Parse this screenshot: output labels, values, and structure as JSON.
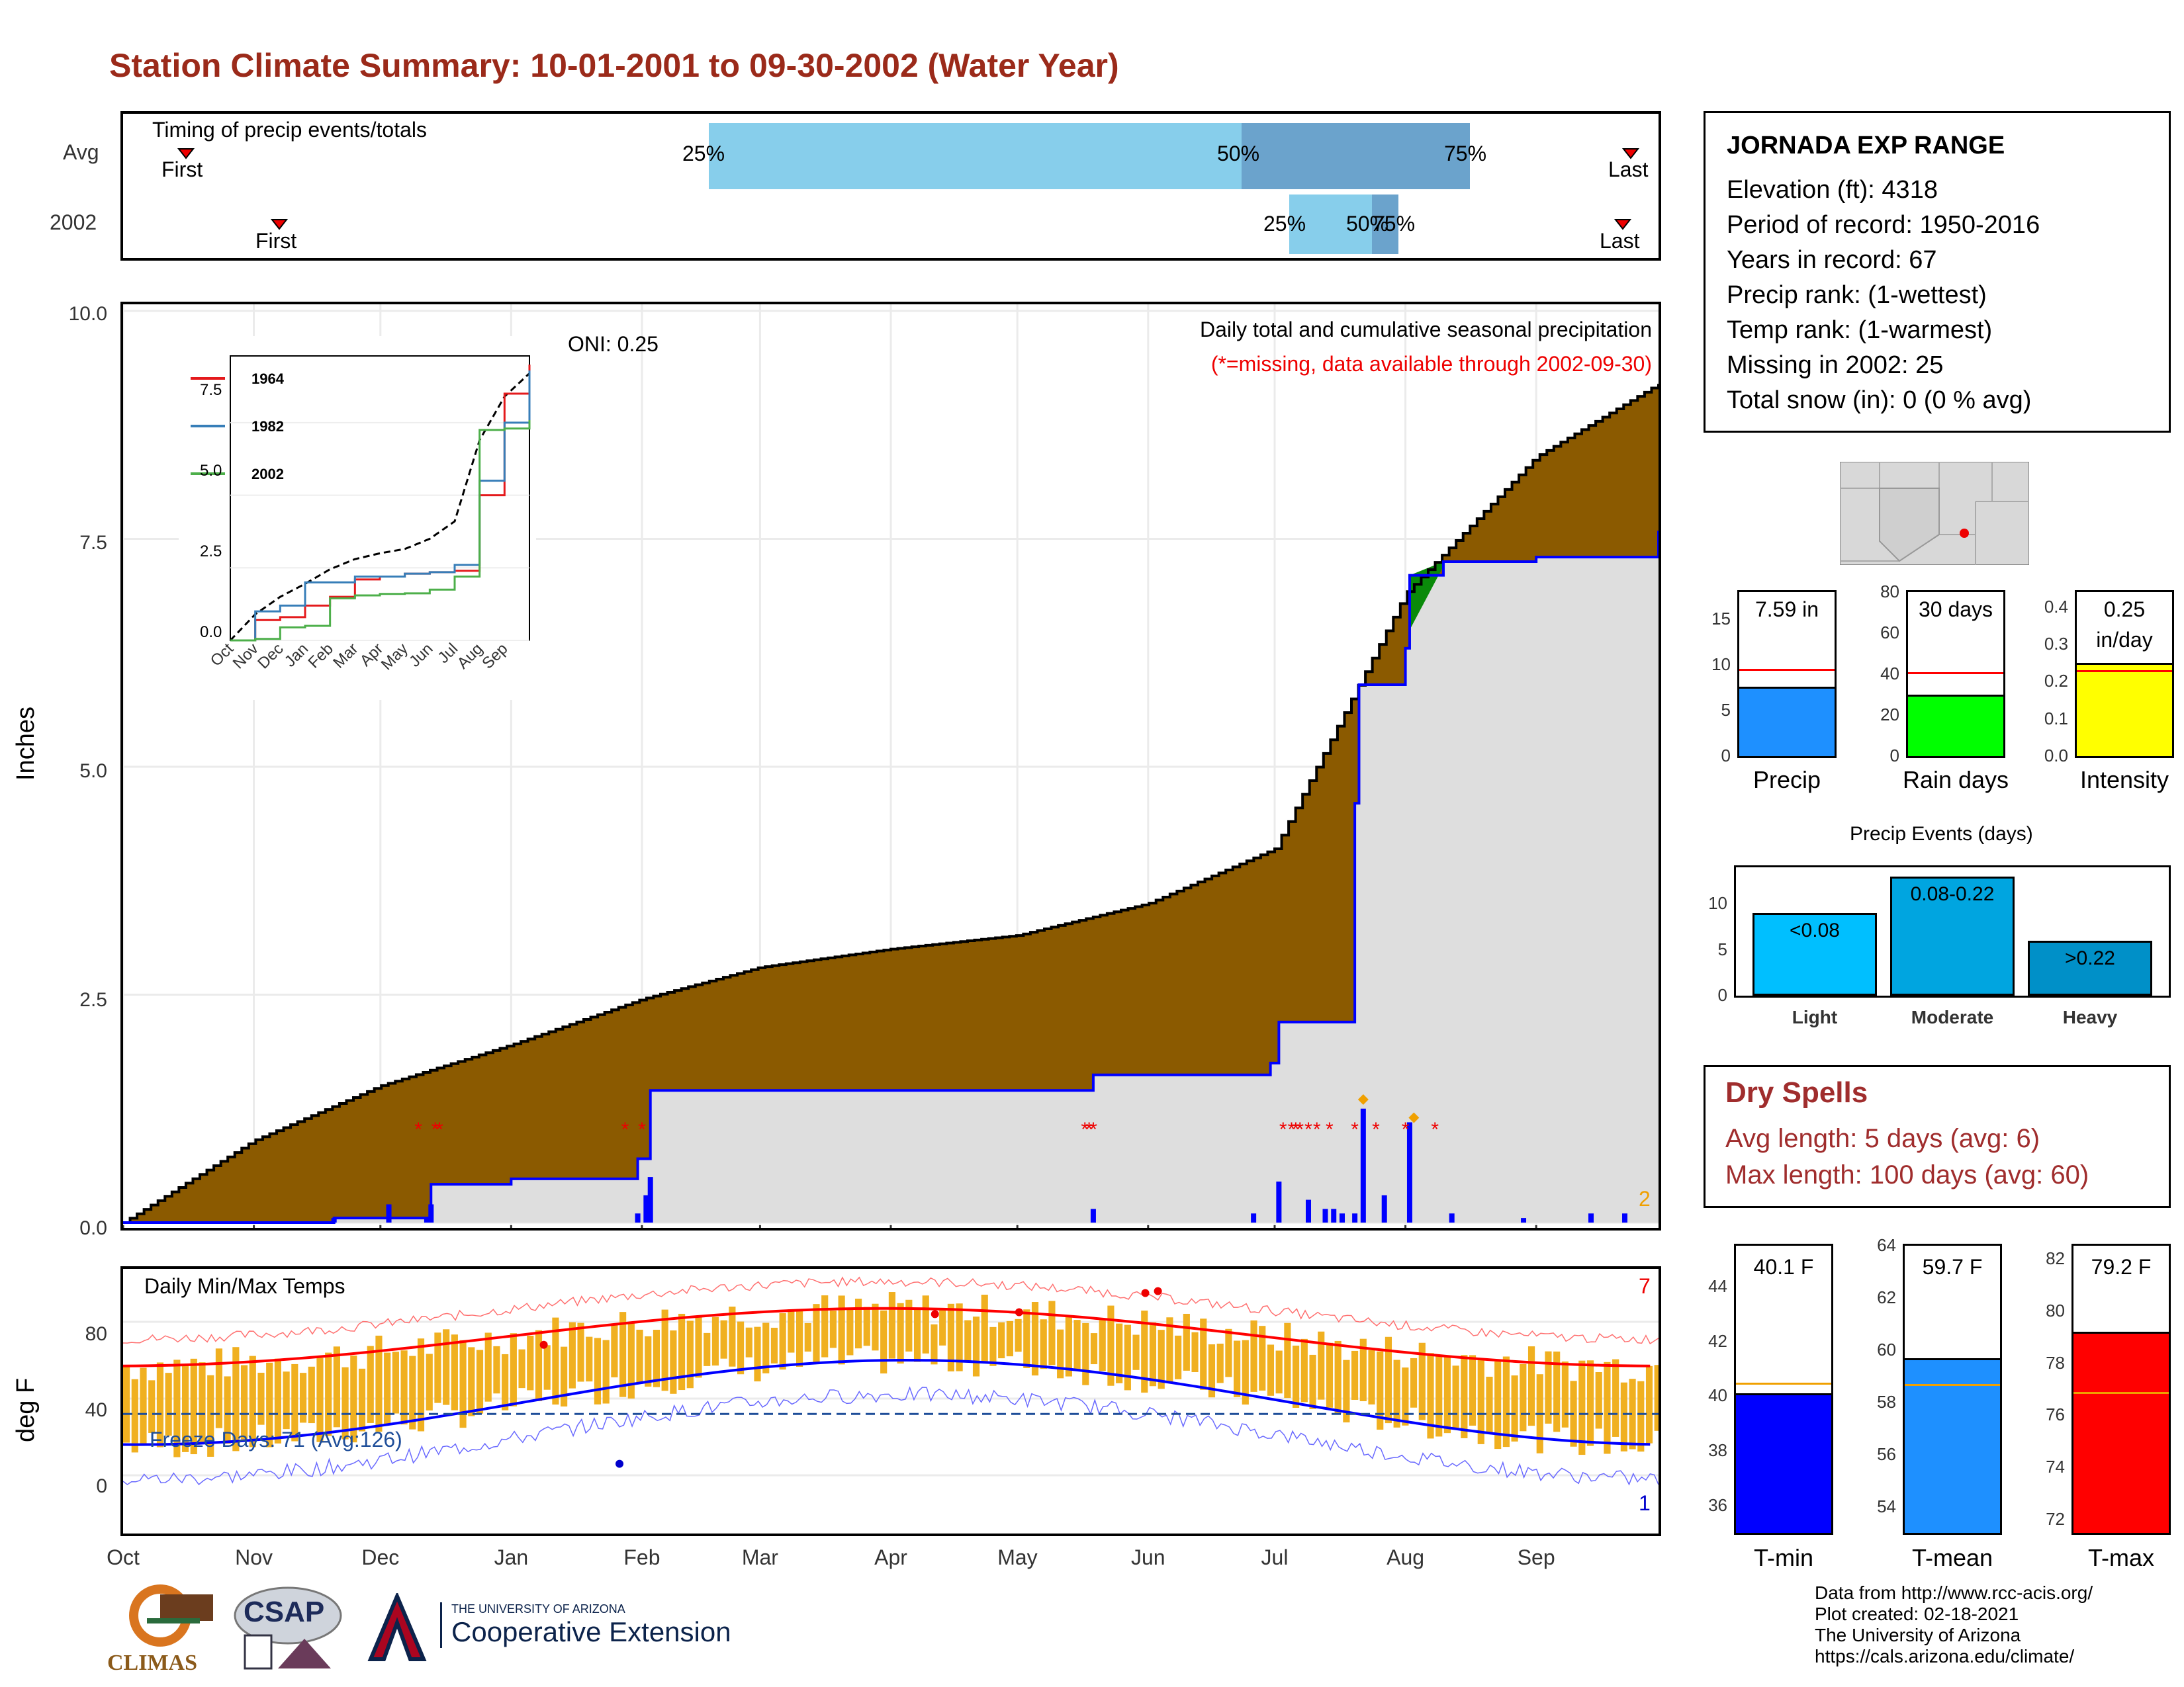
{
  "title": "Station Climate Summary: 10-01-2001 to 09-30-2002 (Water Year)",
  "timing": {
    "label": "Timing of precip events/totals",
    "rows": [
      "Avg",
      "2002"
    ],
    "avg": {
      "first_label": "First",
      "last_label": "Last",
      "p25": "25%",
      "p50": "50%",
      "p75": "75%"
    },
    "y2002": {
      "first_label": "First",
      "last_label": "Last",
      "p25": "25%",
      "p50": "50%",
      "p75": "75%"
    }
  },
  "precip_panel": {
    "ylabel": "Inches",
    "yticks": [
      "10.0",
      "7.5",
      "5.0",
      "2.5",
      "0.0"
    ],
    "header1": "Daily total and cumulative seasonal precipitation",
    "header2": "(*=missing, data available through 2002-09-30)",
    "oni": "ONI: 0.25",
    "corner_count": "2"
  },
  "inset": {
    "yticks": [
      "7.5",
      "5.0",
      "2.5",
      "0.0"
    ],
    "xticks": [
      "Oct",
      "Nov",
      "Dec",
      "Jan",
      "Feb",
      "Mar",
      "Apr",
      "May",
      "Jun",
      "Jul",
      "Aug",
      "Sep"
    ],
    "legend": [
      {
        "name": "1964",
        "color": "#e41a1c"
      },
      {
        "name": "1982",
        "color": "#377eb8"
      },
      {
        "name": "2002",
        "color": "#4daf4a"
      }
    ]
  },
  "temp_panel": {
    "ylabel": "deg F",
    "yticks": [
      "80",
      "40",
      "0"
    ],
    "title": "Daily Min/Max Temps",
    "freeze": "Freeze Days: 71 (Avg:126)",
    "max_count": "7",
    "min_count": "1"
  },
  "months": [
    "Oct",
    "Nov",
    "Dec",
    "Jan",
    "Feb",
    "Mar",
    "Apr",
    "May",
    "Jun",
    "Jul",
    "Aug",
    "Sep"
  ],
  "station": {
    "name": "JORNADA EXP RANGE",
    "lines": [
      "Elevation (ft): 4318",
      "Period of record: 1950-2016",
      "Years in record: 67",
      "Precip rank:  (1-wettest)",
      "Temp rank:  (1-warmest)",
      "Missing in 2002: 25",
      "Total snow (in): 0 (0 % avg)"
    ]
  },
  "bars_top": [
    {
      "label": "7.59 in",
      "caption": "Precip",
      "value": 7.59,
      "avg": 9.6,
      "max": 18,
      "ticks": [
        "15",
        "10",
        "5",
        "0"
      ],
      "color": "#1e90ff"
    },
    {
      "label": "30 days",
      "caption": "Rain days",
      "value": 30,
      "avg": 41,
      "max": 80,
      "ticks": [
        "80",
        "60",
        "40",
        "20",
        "0"
      ],
      "color": "#00ff00"
    },
    {
      "label": "0.25",
      "label2": "in/day",
      "caption": "Intensity",
      "value": 0.25,
      "avg": 0.23,
      "max": 0.44,
      "ticks": [
        "0.4",
        "0.3",
        "0.2",
        "0.1",
        "0.0"
      ],
      "color": "#ffff00"
    }
  ],
  "events": {
    "title": "Precip Events (days)",
    "ticks": [
      "10",
      "5",
      "0"
    ],
    "bars": [
      {
        "label": "<0.08",
        "caption": "Light",
        "value": 9,
        "color": "#00bfff"
      },
      {
        "label": "0.08-0.22",
        "caption": "Moderate",
        "value": 13,
        "color": "#00a5e0"
      },
      {
        "label": ">0.22",
        "caption": "Heavy",
        "value": 6,
        "color": "#0090c8"
      }
    ]
  },
  "dry": {
    "title": "Dry Spells",
    "avg": "Avg length: 5 days (avg: 6)",
    "max": "Max length: 100 days (avg: 60)"
  },
  "temps": [
    {
      "label": "40.1 F",
      "caption": "T-min",
      "value": 40.1,
      "avg": 40.5,
      "min": 35,
      "max": 45.5,
      "ticks": [
        "44",
        "42",
        "40",
        "38",
        "36"
      ],
      "color": "#0000ff"
    },
    {
      "label": "59.7 F",
      "caption": "T-mean",
      "value": 59.7,
      "avg": 58.7,
      "min": 53,
      "max": 64,
      "ticks": [
        "64",
        "62",
        "60",
        "58",
        "56",
        "54"
      ],
      "color": "#1e90ff"
    },
    {
      "label": "79.2 F",
      "caption": "T-max",
      "value": 79.2,
      "avg": 76.9,
      "min": 71.5,
      "max": 82.5,
      "ticks": [
        "82",
        "80",
        "78",
        "76",
        "74",
        "72"
      ],
      "color": "#ff0000"
    }
  ],
  "credits": [
    "Data from http://www.rcc-acis.org/",
    "Plot created: 02-18-2021",
    "The University of Arizona",
    "https://cals.arizona.edu/climate/"
  ],
  "logos": {
    "climas": "CLIMAS",
    "csap": "CSAP",
    "ua_small": "THE UNIVERSITY OF ARIZONA",
    "ua_big": "Cooperative Extension"
  },
  "chart_data": {
    "type": "area",
    "x_unit": "date",
    "series": [
      {
        "name": "Avg",
        "x": [
          "2001-10-01",
          "2001-11-01",
          "2001-12-01",
          "2002-01-01",
          "2002-02-01",
          "2002-03-01",
          "2002-04-01",
          "2002-05-01",
          "2002-06-01",
          "2002-07-01",
          "2002-08-01",
          "2002-09-01",
          "2002-09-30"
        ],
        "values": [
          0.0,
          0.9,
          1.5,
          1.95,
          2.45,
          2.8,
          3.0,
          3.15,
          3.5,
          4.1,
          6.9,
          8.4,
          9.2
        ]
      },
      {
        "name": "2002",
        "x": [
          "2001-10-01",
          "2001-11-20",
          "2001-12-13",
          "2002-01-01",
          "2002-01-31",
          "2002-02-03",
          "2002-05-19",
          "2002-06-30",
          "2002-07-02",
          "2002-07-20",
          "2002-07-21",
          "2002-08-01",
          "2002-08-02",
          "2002-08-10",
          "2002-09-01",
          "2002-09-30"
        ],
        "values": [
          0.0,
          0.05,
          0.42,
          0.48,
          0.7,
          1.45,
          1.62,
          1.75,
          2.2,
          4.6,
          5.9,
          6.3,
          7.1,
          7.25,
          7.3,
          7.59
        ]
      }
    ],
    "ylim": [
      0,
      10
    ]
  }
}
